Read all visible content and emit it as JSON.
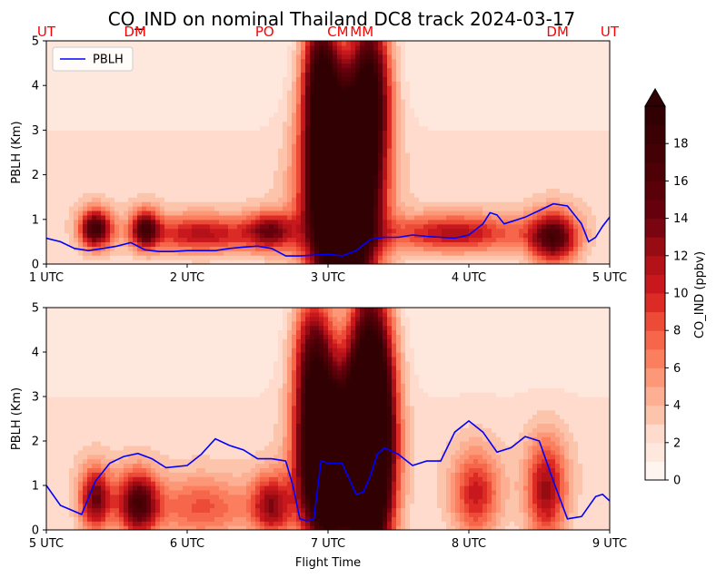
{
  "title": "CO_IND on nominal Thailand DC8 track 2024-03-17",
  "colorbar": {
    "label": "CO_IND (ppbv)",
    "ticks": [
      0,
      2,
      4,
      6,
      8,
      10,
      12,
      14,
      16,
      18
    ],
    "levels": [
      0,
      1,
      2,
      3,
      4,
      5,
      6,
      7,
      8,
      9,
      10,
      11,
      12,
      13,
      14,
      15,
      16,
      17,
      18,
      19
    ],
    "extend": "max",
    "colormap": "Reds",
    "colors": [
      "#fff5f0",
      "#fee8dd",
      "#fedbcc",
      "#fcc4ab",
      "#fcaf93",
      "#fc9777",
      "#fb7f5f",
      "#f5664a",
      "#ec4b37",
      "#dc2b25",
      "#c8181d",
      "#b21218",
      "#970b13",
      "#7a0510",
      "#67000d",
      "#5a0009",
      "#4e0007",
      "#430005",
      "#3a0004",
      "#300003"
    ]
  },
  "chart_data": [
    {
      "type": "heatmap",
      "panel": "top",
      "ylabel": "PBLH (Km)",
      "xlabel": "",
      "ylim": [
        0,
        5
      ],
      "yticks": [
        0,
        1,
        2,
        3,
        4,
        5
      ],
      "xlim": [
        1,
        5
      ],
      "xticks": [
        1,
        2,
        3,
        4,
        5
      ],
      "xtick_labels": [
        "1 UTC",
        "2 UTC",
        "3 UTC",
        "4 UTC",
        "5 UTC"
      ],
      "legend": {
        "placement": "top-left",
        "entries": [
          "PBLH"
        ]
      },
      "site_labels": [
        {
          "label": "UT",
          "x": 1.0
        },
        {
          "label": "DM",
          "x": 1.63
        },
        {
          "label": "PO",
          "x": 2.55
        },
        {
          "label": "CM",
          "x": 3.07
        },
        {
          "label": "MM",
          "x": 3.24
        },
        {
          "label": "DM",
          "x": 4.63
        },
        {
          "label": "UT",
          "x": 5.0
        }
      ],
      "series": [
        {
          "name": "PBLH",
          "color": "#0000ff",
          "x": [
            1.0,
            1.1,
            1.2,
            1.3,
            1.4,
            1.5,
            1.6,
            1.7,
            1.8,
            1.9,
            2.0,
            2.1,
            2.2,
            2.3,
            2.4,
            2.5,
            2.6,
            2.7,
            2.8,
            2.9,
            3.0,
            3.1,
            3.2,
            3.3,
            3.4,
            3.5,
            3.6,
            3.7,
            3.8,
            3.9,
            4.0,
            4.1,
            4.15,
            4.2,
            4.25,
            4.3,
            4.4,
            4.5,
            4.6,
            4.7,
            4.8,
            4.85,
            4.9,
            4.95,
            5.0
          ],
          "y": [
            0.58,
            0.5,
            0.35,
            0.3,
            0.35,
            0.4,
            0.48,
            0.32,
            0.28,
            0.28,
            0.3,
            0.3,
            0.3,
            0.35,
            0.38,
            0.4,
            0.35,
            0.18,
            0.18,
            0.2,
            0.22,
            0.18,
            0.3,
            0.55,
            0.6,
            0.6,
            0.65,
            0.62,
            0.6,
            0.58,
            0.65,
            0.9,
            1.15,
            1.1,
            0.9,
            0.95,
            1.05,
            1.2,
            1.35,
            1.3,
            0.9,
            0.5,
            0.6,
            0.85,
            1.05
          ]
        }
      ],
      "plumes": [
        {
          "x": 1.35,
          "y": 0.8,
          "sx": 0.08,
          "sy": 0.3,
          "amp": 15
        },
        {
          "x": 1.7,
          "y": 0.8,
          "sx": 0.07,
          "sy": 0.3,
          "amp": 12
        },
        {
          "x": 2.1,
          "y": 0.68,
          "sx": 0.3,
          "sy": 0.3,
          "amp": 9
        },
        {
          "x": 2.6,
          "y": 0.75,
          "sx": 0.12,
          "sy": 0.3,
          "amp": 10
        },
        {
          "x": 3.1,
          "y": 1.6,
          "sx": 0.16,
          "sy": 1.5,
          "amp": 40
        },
        {
          "x": 2.95,
          "y": 4.2,
          "sx": 0.09,
          "sy": 1.1,
          "amp": 16
        },
        {
          "x": 3.3,
          "y": 4.0,
          "sx": 0.1,
          "sy": 1.2,
          "amp": 16
        },
        {
          "x": 3.9,
          "y": 0.7,
          "sx": 0.35,
          "sy": 0.3,
          "amp": 9
        },
        {
          "x": 4.6,
          "y": 0.6,
          "sx": 0.12,
          "sy": 0.4,
          "amp": 14
        }
      ]
    },
    {
      "type": "heatmap",
      "panel": "bottom",
      "ylabel": "PBLH (Km)",
      "xlabel": "Flight Time",
      "ylim": [
        0,
        5
      ],
      "yticks": [
        0,
        1,
        2,
        3,
        4,
        5
      ],
      "xlim": [
        5,
        9
      ],
      "xticks": [
        5,
        6,
        7,
        8,
        9
      ],
      "xtick_labels": [
        "5 UTC",
        "6 UTC",
        "7 UTC",
        "8 UTC",
        "9 UTC"
      ],
      "series": [
        {
          "name": "PBLH",
          "color": "#0000ff",
          "x": [
            5.0,
            5.1,
            5.25,
            5.35,
            5.45,
            5.55,
            5.65,
            5.75,
            5.85,
            6.0,
            6.1,
            6.2,
            6.3,
            6.4,
            6.5,
            6.6,
            6.7,
            6.75,
            6.8,
            6.85,
            6.9,
            6.95,
            7.0,
            7.1,
            7.2,
            7.25,
            7.3,
            7.35,
            7.4,
            7.5,
            7.6,
            7.7,
            7.8,
            7.9,
            8.0,
            8.1,
            8.2,
            8.3,
            8.4,
            8.5,
            8.6,
            8.7,
            8.8,
            8.9,
            8.95,
            9.0
          ],
          "y": [
            1.0,
            0.55,
            0.35,
            1.1,
            1.5,
            1.65,
            1.72,
            1.6,
            1.4,
            1.45,
            1.7,
            2.05,
            1.9,
            1.8,
            1.6,
            1.6,
            1.55,
            1.0,
            0.25,
            0.2,
            0.25,
            1.55,
            1.5,
            1.5,
            0.8,
            0.85,
            1.2,
            1.7,
            1.85,
            1.7,
            1.45,
            1.55,
            1.55,
            2.2,
            2.45,
            2.2,
            1.75,
            1.85,
            2.1,
            2.0,
            1.1,
            0.25,
            0.3,
            0.75,
            0.8,
            0.65
          ]
        }
      ],
      "plumes": [
        {
          "x": 5.35,
          "y": 0.7,
          "sx": 0.08,
          "sy": 0.5,
          "amp": 12
        },
        {
          "x": 5.65,
          "y": 0.6,
          "sx": 0.1,
          "sy": 0.5,
          "amp": 14
        },
        {
          "x": 6.1,
          "y": 0.5,
          "sx": 0.25,
          "sy": 0.5,
          "amp": 6
        },
        {
          "x": 6.6,
          "y": 0.55,
          "sx": 0.1,
          "sy": 0.5,
          "amp": 10
        },
        {
          "x": 7.0,
          "y": 1.5,
          "sx": 0.13,
          "sy": 1.2,
          "amp": 35
        },
        {
          "x": 7.3,
          "y": 2.2,
          "sx": 0.11,
          "sy": 2.0,
          "amp": 35
        },
        {
          "x": 6.9,
          "y": 3.8,
          "sx": 0.1,
          "sy": 1.1,
          "amp": 14
        },
        {
          "x": 8.05,
          "y": 0.8,
          "sx": 0.12,
          "sy": 0.7,
          "amp": 8
        },
        {
          "x": 8.55,
          "y": 0.9,
          "sx": 0.1,
          "sy": 0.8,
          "amp": 10
        }
      ]
    }
  ]
}
